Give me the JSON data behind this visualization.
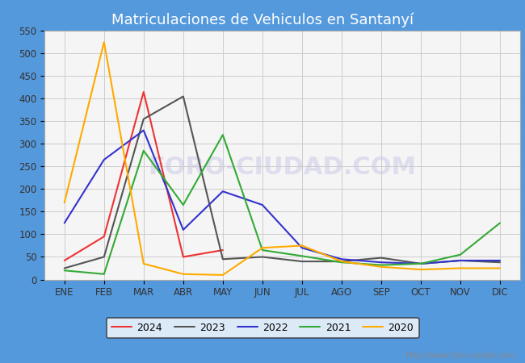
{
  "title": "Matriculaciones de Vehiculos en Santanyí",
  "months": [
    "ENE",
    "FEB",
    "MAR",
    "ABR",
    "MAY",
    "JUN",
    "JUL",
    "AGO",
    "SEP",
    "OCT",
    "NOV",
    "DIC"
  ],
  "series": {
    "2024": {
      "color": "#ee3333",
      "data": [
        42,
        95,
        415,
        50,
        65,
        null,
        null,
        null,
        null,
        null,
        null,
        null
      ]
    },
    "2023": {
      "color": "#555555",
      "data": [
        25,
        50,
        355,
        405,
        45,
        50,
        40,
        40,
        48,
        35,
        42,
        38
      ]
    },
    "2022": {
      "color": "#3333cc",
      "data": [
        125,
        265,
        330,
        110,
        195,
        165,
        70,
        45,
        38,
        35,
        42,
        42
      ]
    },
    "2021": {
      "color": "#33aa33",
      "data": [
        20,
        12,
        285,
        165,
        320,
        65,
        52,
        38,
        32,
        35,
        55,
        125
      ]
    },
    "2020": {
      "color": "#ffaa00",
      "data": [
        170,
        525,
        35,
        12,
        10,
        70,
        75,
        40,
        28,
        22,
        25,
        25
      ]
    }
  },
  "ylim": [
    0,
    550
  ],
  "yticks": [
    0,
    50,
    100,
    150,
    200,
    250,
    300,
    350,
    400,
    450,
    500,
    550
  ],
  "title_color": "white",
  "title_bg_color": "#5599dd",
  "plot_bg_color": "#f5f5f5",
  "grid_color": "#cccccc",
  "watermark_text": "FORO-CIUDAD.COM",
  "watermark_color": "#ddddee",
  "footer_text": "http://www.foro-ciudad.com",
  "footer_color": "#888888",
  "outer_bg_color": "#5599dd",
  "legend_order": [
    "2024",
    "2023",
    "2022",
    "2021",
    "2020"
  ]
}
